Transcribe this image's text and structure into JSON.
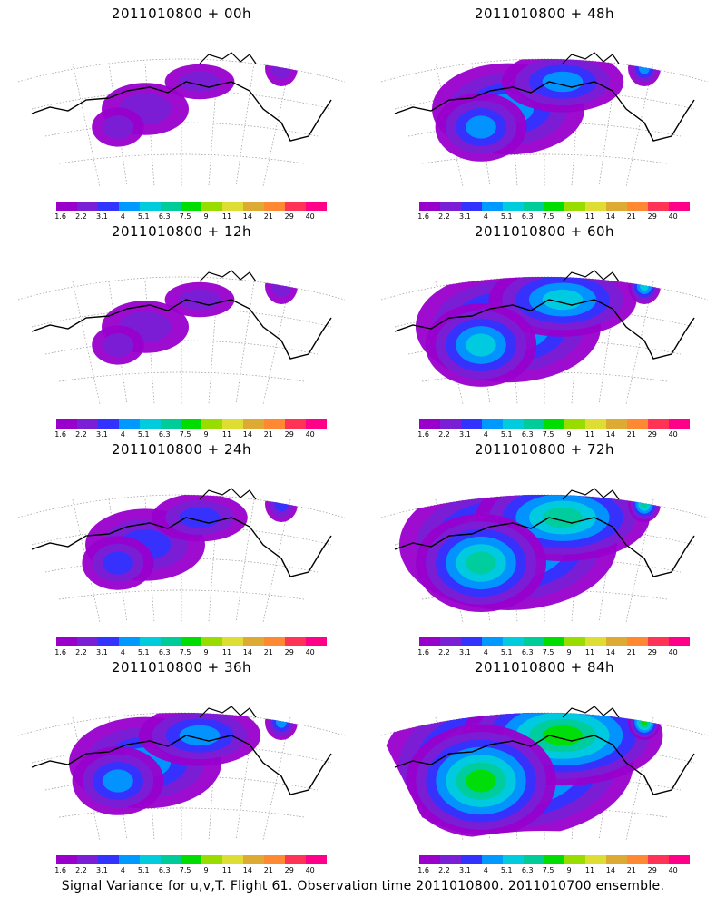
{
  "panels": [
    {
      "title": "2011010800  +  00h",
      "level": 1
    },
    {
      "title": "2011010800  +  48h",
      "level": 3
    },
    {
      "title": "2011010800  +  12h",
      "level": 1
    },
    {
      "title": "2011010800  +  60h",
      "level": 4
    },
    {
      "title": "2011010800  +  24h",
      "level": 2
    },
    {
      "title": "2011010800  +  72h",
      "level": 5
    },
    {
      "title": "2011010800  +  36h",
      "level": 3
    },
    {
      "title": "2011010800  +  84h",
      "level": 6
    }
  ],
  "colorbar": {
    "colors": [
      "#9900cc",
      "#7a1fd6",
      "#3333ff",
      "#0099ff",
      "#00ccdd",
      "#00cc99",
      "#00dd00",
      "#99dd00",
      "#dddd33",
      "#ddaa33",
      "#ff8833",
      "#ff3355",
      "#ff0088"
    ],
    "labels": [
      "1.6",
      "2.2",
      "3.1",
      "4",
      "5.1",
      "6.3",
      "7.5",
      "9",
      "11",
      "14",
      "21",
      "29",
      "40"
    ]
  },
  "footer": "Signal Variance for u,v,T. Flight 61. Observation time 2011010800. 2011010700 ensemble."
}
